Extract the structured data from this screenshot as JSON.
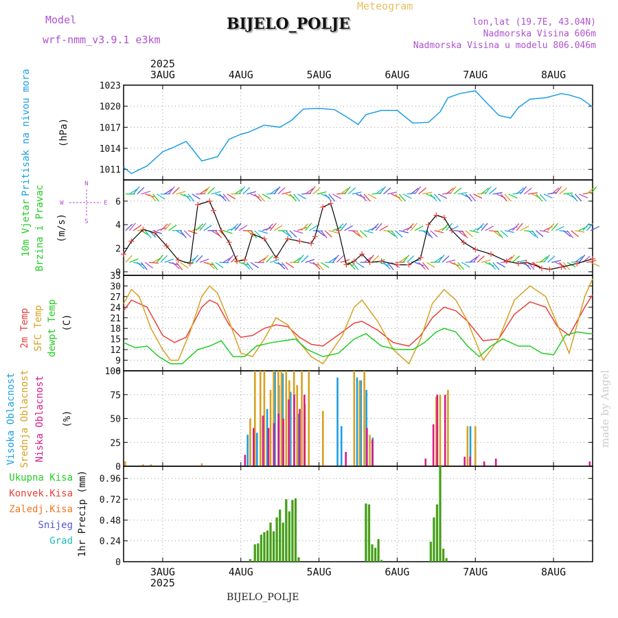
{
  "header": {
    "model_label": "Model",
    "model_name": "wrf-nmm_v3.9.1 e3km",
    "title": "BIJELO_POLJE",
    "meteogram": "Meteogram",
    "lonlat": "lon,lat (19.7E, 43.04N)",
    "elevation": "Nadmorska Visina 606m",
    "model_elevation": "Nadmorska Visina u modelu 806.046m",
    "footer_title": "BIJELO_POLJE",
    "watermark": "made by Angel"
  },
  "colors": {
    "pressure": "#1a9ee6",
    "temp2m": "#e8403a",
    "sfc": "#d6a020",
    "dewpt": "#22cc22",
    "high": "#1a9ee6",
    "mid": "#d6a020",
    "low": "#d81a8c",
    "precip_total": "#22cc22",
    "precip_conv": "#e8403a",
    "snow": "#5555dd",
    "grad": "#22bbbb",
    "froz": "#ee7722",
    "model_purple": "#b050d0"
  },
  "time_axis": {
    "year": "2025",
    "days": [
      "3AUG",
      "4AUG",
      "5AUG",
      "6AUG",
      "7AUG",
      "8AUG"
    ],
    "start_day_offset": -0.5,
    "end_day_offset": 5.5
  },
  "chart_data": [
    {
      "type": "line",
      "panel": "pressure",
      "ylabel_main": "Pritisak na nivou mora",
      "ylabel_unit": "(hPa)",
      "ylim": [
        1009.5,
        1023
      ],
      "ticks": [
        "1011",
        "1014",
        "1017",
        "1020",
        "1023"
      ],
      "series": [
        {
          "name": "MSLP",
          "x": [
            -0.5,
            -0.4,
            -0.2,
            0,
            0.15,
            0.3,
            0.5,
            0.7,
            0.85,
            1.0,
            1.1,
            1.3,
            1.5,
            1.65,
            1.8,
            2.0,
            2.2,
            2.35,
            2.5,
            2.6,
            2.8,
            3.0,
            3.2,
            3.4,
            3.55,
            3.65,
            3.8,
            4.0,
            4.1,
            4.3,
            4.45,
            4.55,
            4.7,
            4.9,
            5.1,
            5.2,
            5.35,
            5.5
          ],
          "values": [
            1011.3,
            1010.4,
            1011.5,
            1013.5,
            1014.2,
            1015.0,
            1012.2,
            1012.8,
            1015.3,
            1016.0,
            1016.3,
            1017.3,
            1017.0,
            1018.0,
            1019.6,
            1019.7,
            1019.5,
            1018.5,
            1017.4,
            1018.8,
            1019.4,
            1019.4,
            1017.6,
            1017.7,
            1019.2,
            1021.2,
            1021.8,
            1022.2,
            1021.0,
            1018.7,
            1018.3,
            1019.8,
            1021.0,
            1021.2,
            1021.8,
            1021.6,
            1021.1,
            1019.9
          ]
        }
      ]
    },
    {
      "type": "line",
      "panel": "wind",
      "ylabel_main": "10m Vjetar",
      "ylabel_second": "Brzina i Pravac",
      "ylabel_unit": "(m/s)",
      "compass": {
        "n": "N",
        "w": "W",
        "e": "E",
        "s": "S"
      },
      "ylim": [
        -0.3,
        7.8
      ],
      "ticks": [
        "0",
        "2",
        "4",
        "6"
      ],
      "series": [
        {
          "name": "speed",
          "x": [
            -0.5,
            -0.4,
            -0.25,
            -0.1,
            0.05,
            0.2,
            0.35,
            0.45,
            0.6,
            0.65,
            0.75,
            0.85,
            0.95,
            1.05,
            1.15,
            1.3,
            1.45,
            1.6,
            1.75,
            1.9,
            1.95,
            2.05,
            2.15,
            2.25,
            2.35,
            2.45,
            2.55,
            2.65,
            2.8,
            3.0,
            3.15,
            3.3,
            3.4,
            3.5,
            3.6,
            3.7,
            3.85,
            4.0,
            4.2,
            4.4,
            4.55,
            4.65,
            4.75,
            4.85,
            4.95,
            5.1,
            5.3,
            5.5
          ],
          "values": [
            1.5,
            2.6,
            3.6,
            3.3,
            2.2,
            1.0,
            0.7,
            5.7,
            6.0,
            5.2,
            3.5,
            2.5,
            0.9,
            1.0,
            3.2,
            2.8,
            1.2,
            2.8,
            2.6,
            2.4,
            3.0,
            5.5,
            5.8,
            3.5,
            0.6,
            0.9,
            1.5,
            0.8,
            0.9,
            0.6,
            0.6,
            1.2,
            4.0,
            4.8,
            4.6,
            3.5,
            2.5,
            1.9,
            1.5,
            0.9,
            0.7,
            0.8,
            0.6,
            0.3,
            0.2,
            0.4,
            0.7,
            1.1
          ]
        }
      ]
    },
    {
      "type": "line",
      "panel": "temperature",
      "ylabel_a": "2m Temp",
      "ylabel_b": "SFC Temp",
      "ylabel_c": "dewpt Temp",
      "ylabel_unit": "(C)",
      "ylim": [
        6,
        33
      ],
      "ticks": [
        "6",
        "9",
        "12",
        "15",
        "18",
        "21",
        "24",
        "27",
        "30",
        "33"
      ],
      "series": [
        {
          "name": "2m",
          "x": [
            -0.5,
            -0.4,
            -0.2,
            0,
            0.15,
            0.3,
            0.5,
            0.6,
            0.7,
            0.85,
            1.0,
            1.15,
            1.3,
            1.45,
            1.6,
            1.75,
            1.9,
            2.05,
            2.3,
            2.45,
            2.55,
            2.75,
            2.95,
            3.15,
            3.3,
            3.45,
            3.6,
            3.75,
            3.9,
            4.1,
            4.3,
            4.5,
            4.7,
            4.9,
            5.05,
            5.2,
            5.4,
            5.5
          ],
          "values": [
            23,
            26,
            24,
            16,
            14,
            15.5,
            24,
            26,
            25,
            19,
            15.5,
            16,
            18,
            19,
            18.5,
            15.5,
            13.5,
            13,
            17,
            19.5,
            20,
            17.5,
            14,
            13,
            16,
            21,
            24,
            23,
            20,
            14.5,
            15,
            22,
            25.5,
            24,
            18.5,
            16,
            24,
            27.5
          ]
        },
        {
          "name": "sfc",
          "x": [
            -0.5,
            -0.4,
            -0.3,
            -0.15,
            0.0,
            0.1,
            0.2,
            0.35,
            0.5,
            0.6,
            0.7,
            0.85,
            1.0,
            1.15,
            1.3,
            1.45,
            1.6,
            1.75,
            1.9,
            2.05,
            2.3,
            2.45,
            2.55,
            2.75,
            2.95,
            3.15,
            3.3,
            3.45,
            3.6,
            3.75,
            3.9,
            4.1,
            4.3,
            4.5,
            4.7,
            4.9,
            5.05,
            5.2,
            5.4,
            5.5
          ],
          "values": [
            25,
            29,
            27,
            18,
            12,
            9,
            9,
            17,
            27,
            30,
            28,
            20,
            11,
            10,
            15,
            21,
            19,
            14,
            10,
            8,
            16,
            24,
            26,
            20,
            12,
            8,
            15,
            25,
            29,
            26,
            20,
            9,
            15,
            26,
            30,
            27,
            19,
            11,
            27,
            32
          ]
        },
        {
          "name": "dewpt",
          "x": [
            -0.5,
            -0.35,
            -0.2,
            -0.05,
            0.1,
            0.25,
            0.45,
            0.6,
            0.75,
            0.9,
            1.05,
            1.2,
            1.4,
            1.55,
            1.7,
            1.85,
            2.05,
            2.25,
            2.45,
            2.6,
            2.8,
            3.0,
            3.2,
            3.35,
            3.5,
            3.6,
            3.75,
            3.9,
            4.05,
            4.2,
            4.35,
            4.55,
            4.7,
            4.85,
            5.0,
            5.15,
            5.3,
            5.45,
            5.5
          ],
          "values": [
            14,
            12.5,
            13,
            10,
            8,
            8,
            12,
            13,
            14.5,
            10,
            10,
            13,
            14,
            14.5,
            15,
            12,
            10,
            11,
            15,
            16.5,
            13,
            12,
            12,
            14,
            17,
            18,
            17,
            13,
            10,
            13,
            15,
            13,
            13,
            11,
            10.5,
            16,
            17,
            16.5,
            16.5
          ]
        }
      ]
    },
    {
      "type": "bar",
      "panel": "clouds",
      "ylabel_a": "Visoka Oblacnost",
      "ylabel_b": "Srednja Oblacnost",
      "ylabel_c": "Niska Oblacnost",
      "ylabel_unit": "(%)",
      "ylim": [
        0,
        100
      ],
      "ticks": [
        "0",
        "25",
        "50",
        "75",
        "100"
      ],
      "series": [
        {
          "name": "high",
          "x": [
            1.1,
            1.22,
            1.35,
            1.45,
            1.5,
            1.55,
            1.65,
            1.75,
            2.25,
            2.3,
            2.5,
            2.55,
            2.62,
            2.7,
            3.95
          ],
          "values": [
            33,
            35,
            60,
            100,
            85,
            97,
            78,
            55,
            93,
            42,
            93,
            90,
            80,
            30,
            42
          ]
        },
        {
          "name": "mid",
          "x": [
            -0.48,
            -0.25,
            -0.15,
            0.5,
            1.12,
            1.18,
            1.25,
            1.3,
            1.38,
            1.42,
            1.48,
            1.52,
            1.58,
            1.62,
            1.68,
            1.72,
            1.78,
            1.82,
            1.87,
            2.05,
            2.45,
            2.52,
            2.58,
            2.65,
            3.5,
            3.55,
            3.65,
            3.9,
            4.0
          ],
          "values": [
            5,
            2,
            2,
            3,
            50,
            100,
            100,
            100,
            80,
            100,
            100,
            100,
            100,
            90,
            100,
            85,
            100,
            65,
            100,
            58,
            100,
            90,
            100,
            33,
            73,
            75,
            80,
            42,
            42
          ]
        },
        {
          "name": "low",
          "x": [
            1.04,
            1.15,
            1.27,
            1.34,
            1.41,
            1.47,
            1.53,
            1.6,
            1.67,
            1.74,
            1.8,
            2.33,
            2.6,
            2.67,
            3.35,
            3.45,
            3.5,
            3.6,
            3.85,
            3.92,
            4.1,
            4.25,
            5.45
          ],
          "values": [
            12,
            40,
            53,
            40,
            45,
            55,
            50,
            70,
            75,
            60,
            75,
            15,
            40,
            28,
            8,
            44,
            75,
            75,
            10,
            10,
            5,
            8,
            5
          ]
        }
      ]
    },
    {
      "type": "bar",
      "panel": "precip",
      "legend": [
        "Ukupna Kisa",
        "Konvek.Kisa",
        "Zaledj.Kisa",
        "Snijeg",
        "Grad"
      ],
      "ylabel_unit": "1hr Precip (mm)",
      "ylim": [
        0,
        1.1
      ],
      "ticks": [
        "0",
        "0.24",
        "0.48",
        "0.72",
        "0.96"
      ],
      "series": [
        {
          "name": "total",
          "x": [
            1.12,
            1.18,
            1.22,
            1.26,
            1.3,
            1.34,
            1.38,
            1.42,
            1.46,
            1.5,
            1.54,
            1.58,
            1.62,
            1.66,
            1.7,
            1.74,
            2.6,
            2.64,
            2.68,
            2.72,
            2.76,
            2.8,
            3.43,
            3.47,
            3.51,
            3.55,
            3.59,
            3.63
          ],
          "values": [
            0.03,
            0.2,
            0.21,
            0.31,
            0.34,
            0.36,
            0.45,
            0.35,
            0.51,
            0.6,
            0.45,
            0.72,
            0.58,
            0.71,
            0.73,
            0.05,
            0.67,
            0.66,
            0.2,
            0.16,
            0.26,
            0.02,
            0.23,
            0.51,
            0.66,
            1.1,
            0.15,
            0.04
          ]
        }
      ]
    }
  ]
}
